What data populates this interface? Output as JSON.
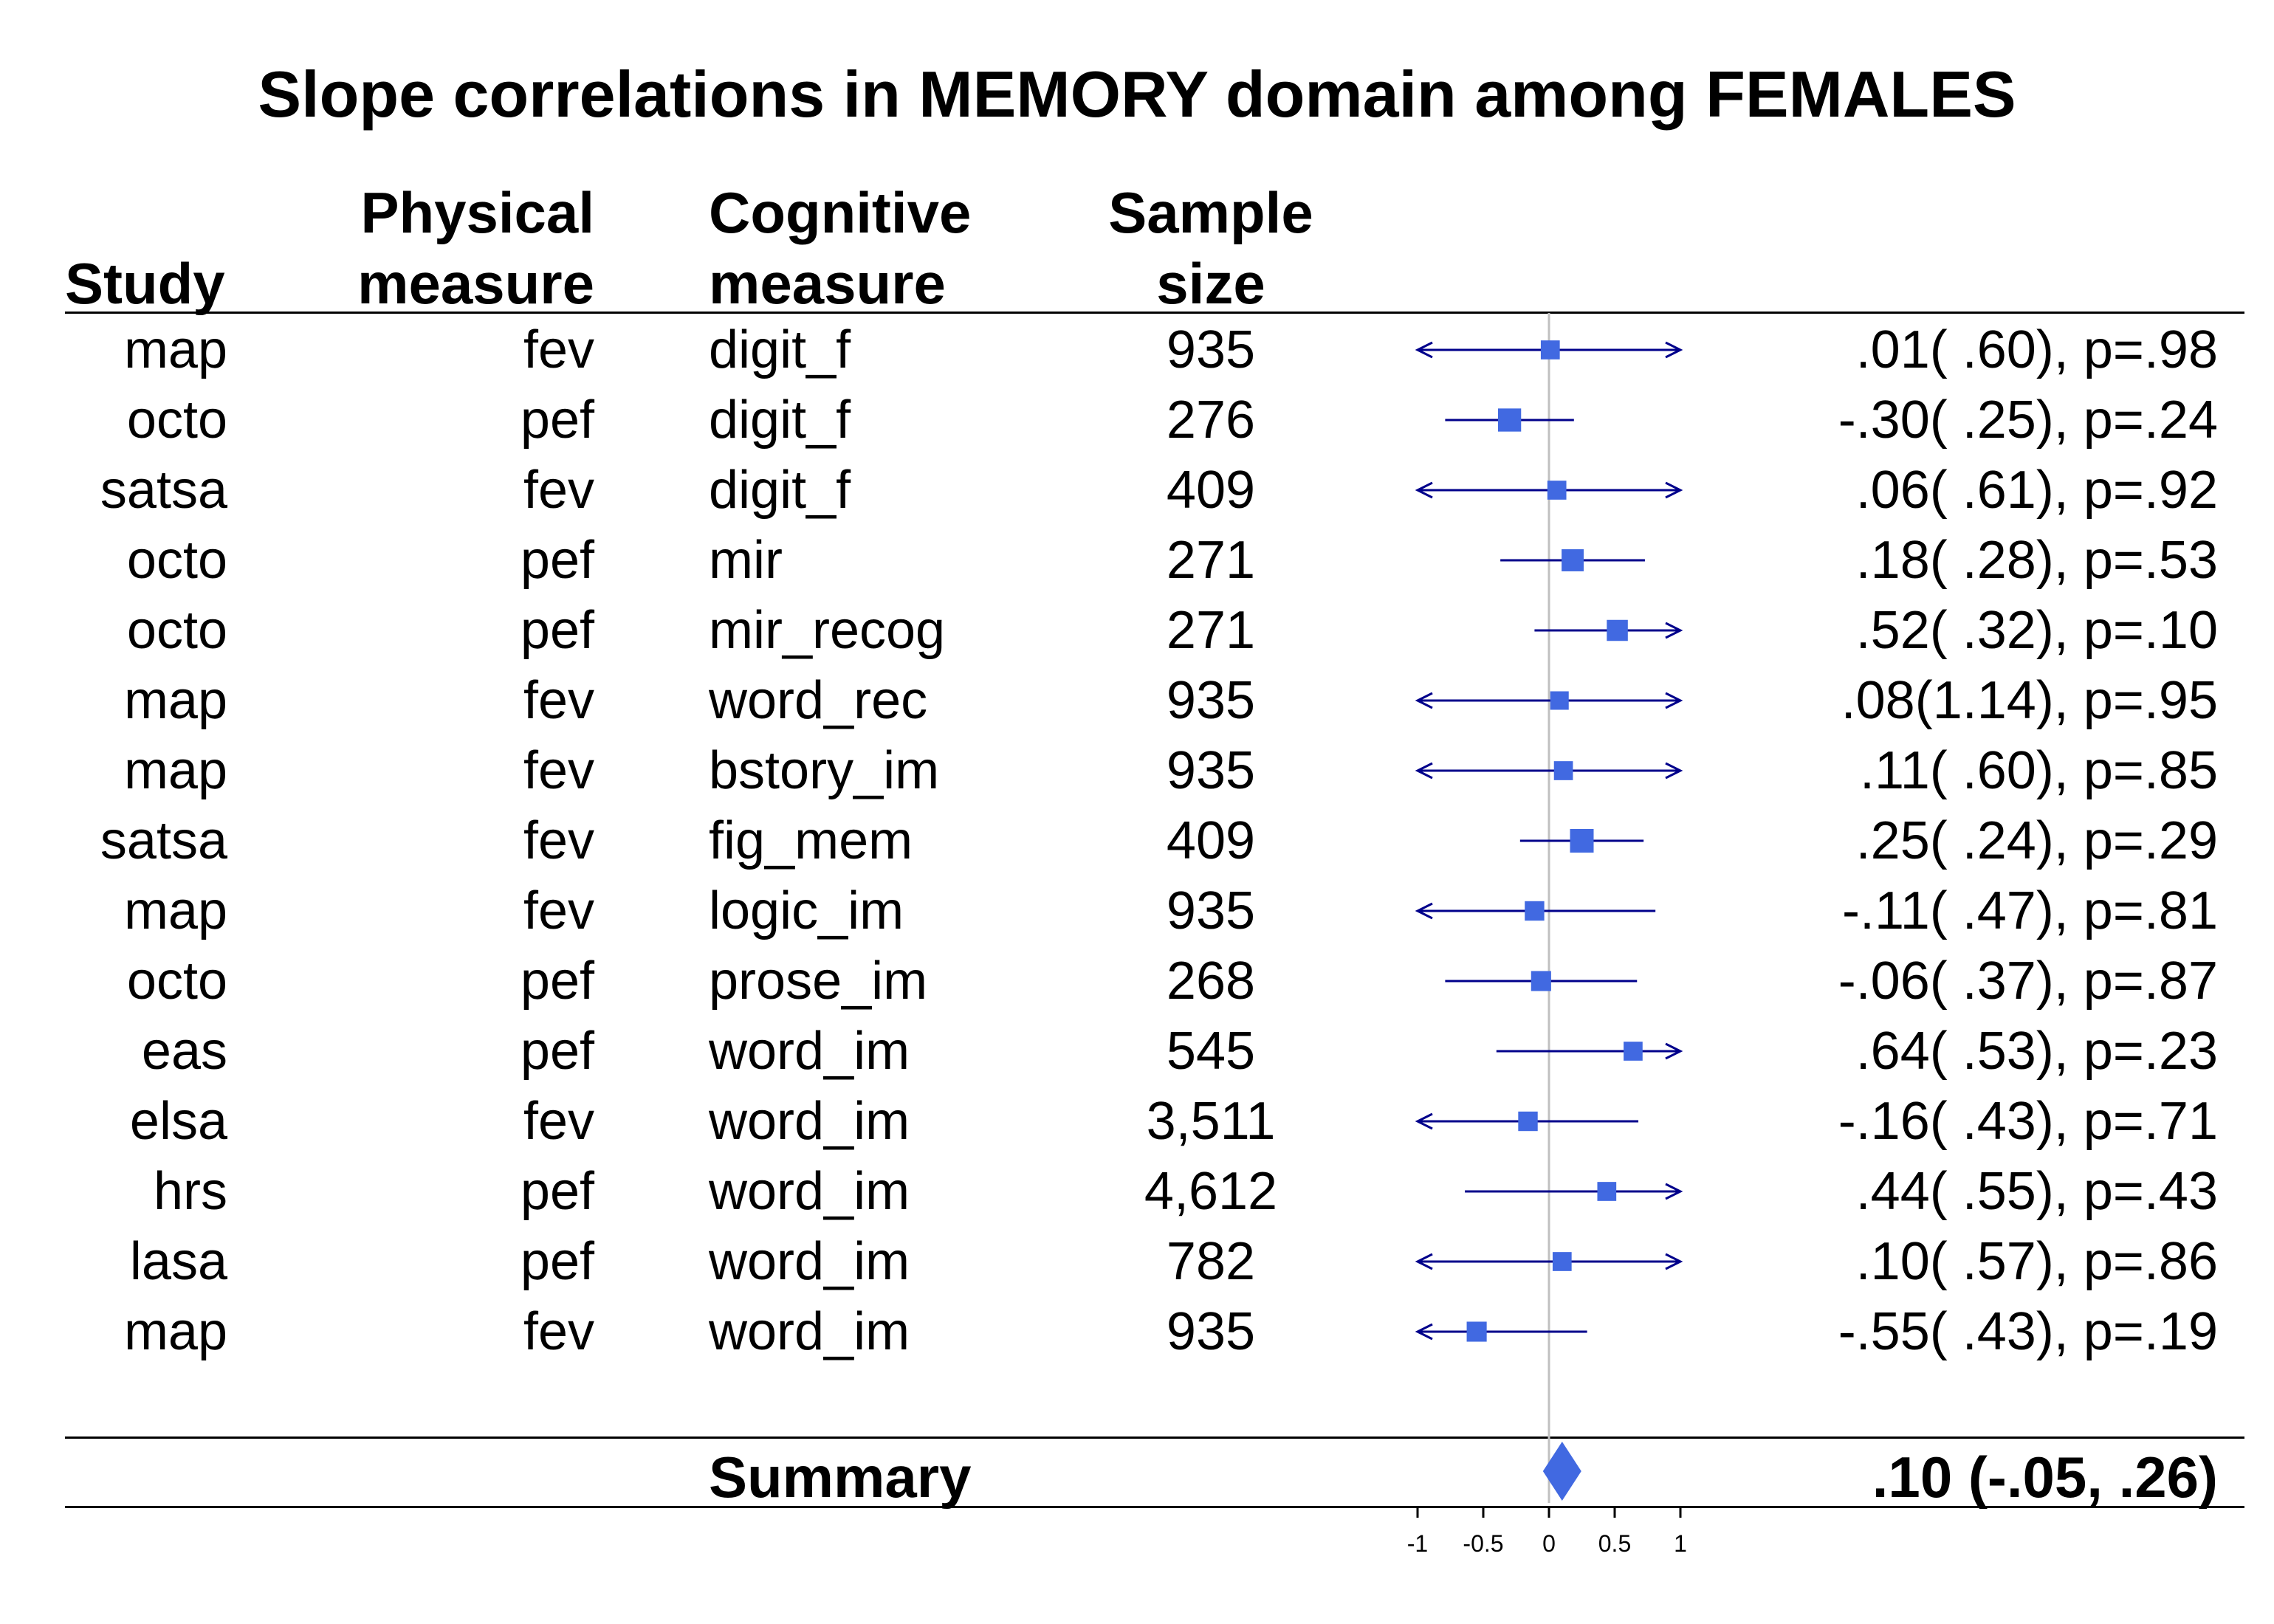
{
  "chart_data": {
    "type": "forest",
    "title": "Slope correlations in MEMORY domain among FEMALES",
    "columns": {
      "study": "Study",
      "physical": [
        "Physical",
        "measure"
      ],
      "cognitive": [
        "Cognitive",
        "measure"
      ],
      "sample": [
        "Sample",
        "size"
      ]
    },
    "xlim": [
      -1,
      1
    ],
    "xticks": [
      "-1",
      "-0.5",
      "0",
      "0.5",
      "1"
    ],
    "xtick_values": [
      -1,
      -0.5,
      0,
      0.5,
      1
    ],
    "reference_line": 0,
    "rows": [
      {
        "study": "map",
        "physical": "fev",
        "cognitive": "digit_f",
        "n": "935",
        "est": 0.01,
        "lo": -1.0,
        "hi": 1.0,
        "lo_arrow": true,
        "hi_arrow": true,
        "weight": 0.55,
        "label": ".01( .60), p=.98"
      },
      {
        "study": "octo",
        "physical": "pef",
        "cognitive": "digit_f",
        "n": "276",
        "est": -0.3,
        "lo": -0.79,
        "hi": 0.19,
        "lo_arrow": false,
        "hi_arrow": false,
        "weight": 0.95,
        "label": "-.30( .25), p=.24"
      },
      {
        "study": "satsa",
        "physical": "fev",
        "cognitive": "digit_f",
        "n": "409",
        "est": 0.06,
        "lo": -1.0,
        "hi": 1.0,
        "lo_arrow": true,
        "hi_arrow": true,
        "weight": 0.55,
        "label": ".06( .61), p=.92"
      },
      {
        "study": "octo",
        "physical": "pef",
        "cognitive": "mir",
        "n": "271",
        "est": 0.18,
        "lo": -0.37,
        "hi": 0.73,
        "lo_arrow": false,
        "hi_arrow": false,
        "weight": 0.85,
        "label": ".18( .28), p=.53"
      },
      {
        "study": "octo",
        "physical": "pef",
        "cognitive": "mir_recog",
        "n": "271",
        "est": 0.52,
        "lo": -0.11,
        "hi": 1.0,
        "lo_arrow": false,
        "hi_arrow": true,
        "weight": 0.75,
        "label": ".52( .32), p=.10"
      },
      {
        "study": "map",
        "physical": "fev",
        "cognitive": "word_rec",
        "n": "935",
        "est": 0.08,
        "lo": -1.0,
        "hi": 1.0,
        "lo_arrow": true,
        "hi_arrow": true,
        "weight": 0.5,
        "label": ".08(1.14), p=.95"
      },
      {
        "study": "map",
        "physical": "fev",
        "cognitive": "bstory_im",
        "n": "935",
        "est": 0.11,
        "lo": -1.0,
        "hi": 1.0,
        "lo_arrow": true,
        "hi_arrow": true,
        "weight": 0.55,
        "label": ".11( .60), p=.85"
      },
      {
        "study": "satsa",
        "physical": "fev",
        "cognitive": "fig_mem",
        "n": "409",
        "est": 0.25,
        "lo": -0.22,
        "hi": 0.72,
        "lo_arrow": false,
        "hi_arrow": false,
        "weight": 1.0,
        "label": ".25( .24), p=.29"
      },
      {
        "study": "map",
        "physical": "fev",
        "cognitive": "logic_im",
        "n": "935",
        "est": -0.11,
        "lo": -1.0,
        "hi": 0.81,
        "lo_arrow": true,
        "hi_arrow": false,
        "weight": 0.6,
        "label": "-.11( .47), p=.81"
      },
      {
        "study": "octo",
        "physical": "pef",
        "cognitive": "prose_im",
        "n": "268",
        "est": -0.06,
        "lo": -0.79,
        "hi": 0.67,
        "lo_arrow": false,
        "hi_arrow": false,
        "weight": 0.65,
        "label": "-.06( .37), p=.87"
      },
      {
        "study": "eas",
        "physical": "pef",
        "cognitive": "word_im",
        "n": "545",
        "est": 0.64,
        "lo": -0.4,
        "hi": 1.0,
        "lo_arrow": false,
        "hi_arrow": true,
        "weight": 0.55,
        "label": ".64( .53), p=.23"
      },
      {
        "study": "elsa",
        "physical": "fev",
        "cognitive": "word_im",
        "n": "3,511",
        "est": -0.16,
        "lo": -1.0,
        "hi": 0.68,
        "lo_arrow": true,
        "hi_arrow": false,
        "weight": 0.6,
        "label": "-.16( .43), p=.71"
      },
      {
        "study": "hrs",
        "physical": "pef",
        "cognitive": "word_im",
        "n": "4,612",
        "est": 0.44,
        "lo": -0.64,
        "hi": 1.0,
        "lo_arrow": false,
        "hi_arrow": true,
        "weight": 0.55,
        "label": ".44( .55), p=.43"
      },
      {
        "study": "lasa",
        "physical": "pef",
        "cognitive": "word_im",
        "n": "782",
        "est": 0.1,
        "lo": -1.0,
        "hi": 1.0,
        "lo_arrow": true,
        "hi_arrow": true,
        "weight": 0.55,
        "label": ".10( .57), p=.86"
      },
      {
        "study": "map",
        "physical": "fev",
        "cognitive": "word_im",
        "n": "935",
        "est": -0.55,
        "lo": -1.0,
        "hi": 0.29,
        "lo_arrow": true,
        "hi_arrow": false,
        "weight": 0.65,
        "label": "-.55( .43), p=.19"
      }
    ],
    "summary": {
      "label": "Summary",
      "est": 0.1,
      "lo": -0.05,
      "hi": 0.26,
      "text": ".10 (-.05, .26)"
    },
    "colors": {
      "marker": "#4169e1",
      "ci_line": "#00008b",
      "reference": "#c0c0c0",
      "rule": "#000000"
    }
  }
}
